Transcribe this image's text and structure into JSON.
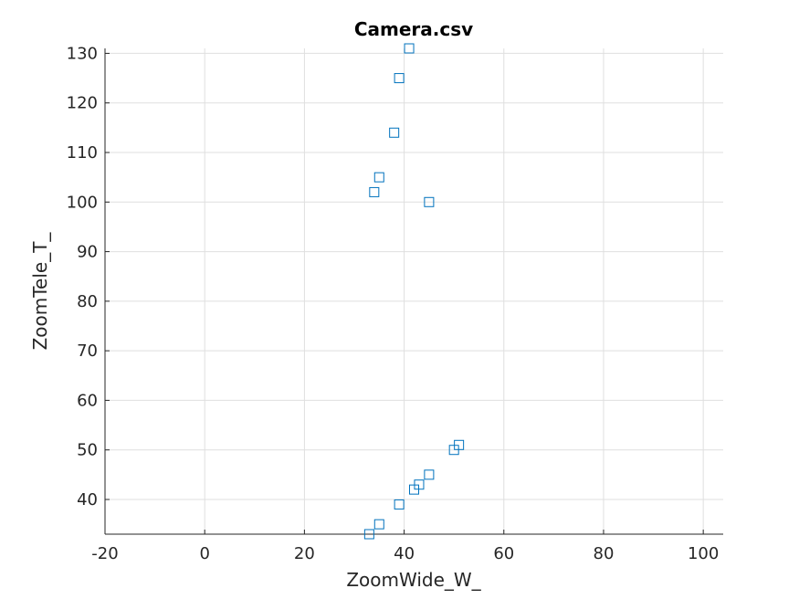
{
  "chart_data": {
    "type": "scatter",
    "title": "Camera.csv",
    "xlabel": "ZoomWide_W_",
    "ylabel": "ZoomTele_T_",
    "xlim": [
      -20,
      104
    ],
    "ylim": [
      33,
      131
    ],
    "x_ticks": [
      -20,
      0,
      20,
      40,
      60,
      80,
      100
    ],
    "y_ticks": [
      40,
      50,
      60,
      70,
      80,
      90,
      100,
      110,
      120,
      130
    ],
    "grid": true,
    "marker": "square",
    "color": "#0072BD",
    "points": [
      {
        "x": 41,
        "y": 131
      },
      {
        "x": 39,
        "y": 125
      },
      {
        "x": 38,
        "y": 114
      },
      {
        "x": 35,
        "y": 105
      },
      {
        "x": 34,
        "y": 102
      },
      {
        "x": 45,
        "y": 100
      },
      {
        "x": 51,
        "y": 51
      },
      {
        "x": 50,
        "y": 50
      },
      {
        "x": 45,
        "y": 45
      },
      {
        "x": 43,
        "y": 43
      },
      {
        "x": 42,
        "y": 42
      },
      {
        "x": 39,
        "y": 39
      },
      {
        "x": 35,
        "y": 35
      },
      {
        "x": 33,
        "y": 33
      }
    ]
  }
}
